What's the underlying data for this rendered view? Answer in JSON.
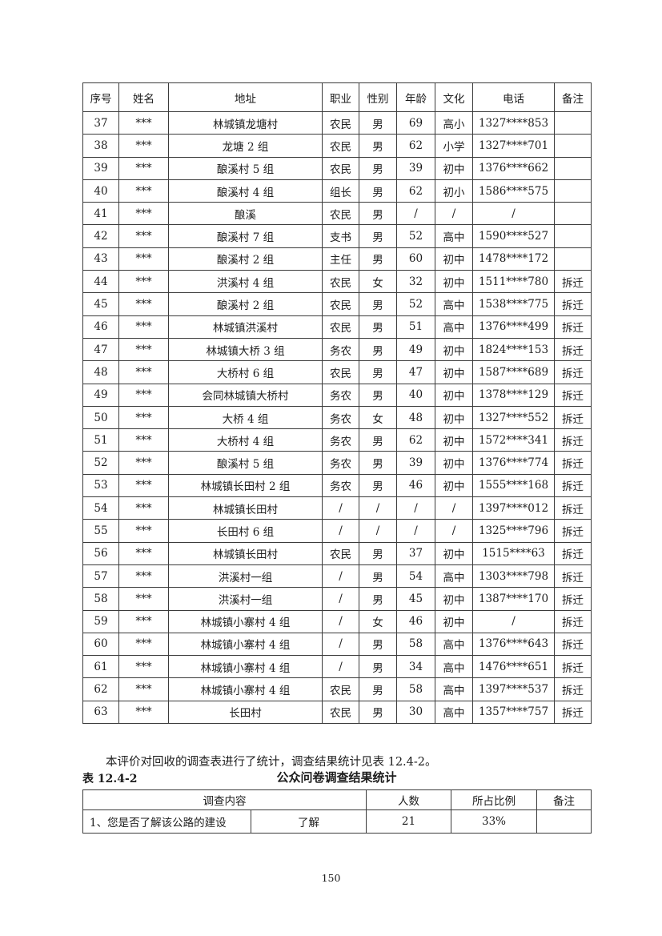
{
  "survey_table": {
    "headers": [
      "序号",
      "姓名",
      "地址",
      "职业",
      "性别",
      "年龄",
      "文化",
      "电话",
      "备注"
    ],
    "rows": [
      [
        "37",
        "***",
        "林城镇龙塘村",
        "农民",
        "男",
        "69",
        "高小",
        "1327****853",
        ""
      ],
      [
        "38",
        "***",
        "龙塘 2 组",
        "农民",
        "男",
        "62",
        "小学",
        "1327****701",
        ""
      ],
      [
        "39",
        "***",
        "酿溪村 5 组",
        "农民",
        "男",
        "39",
        "初中",
        "1376****662",
        ""
      ],
      [
        "40",
        "***",
        "酿溪村 4 组",
        "组长",
        "男",
        "62",
        "初小",
        "1586****575",
        ""
      ],
      [
        "41",
        "***",
        "酿溪",
        "农民",
        "男",
        "/",
        "/",
        "/",
        ""
      ],
      [
        "42",
        "***",
        "酿溪村 7 组",
        "支书",
        "男",
        "52",
        "高中",
        "1590****527",
        ""
      ],
      [
        "43",
        "***",
        "酿溪村 2 组",
        "主任",
        "男",
        "60",
        "初中",
        "1478****172",
        ""
      ],
      [
        "44",
        "***",
        "洪溪村 4 组",
        "农民",
        "女",
        "32",
        "初中",
        "1511****780",
        "拆迁"
      ],
      [
        "45",
        "***",
        "酿溪村 2 组",
        "农民",
        "男",
        "52",
        "高中",
        "1538****775",
        "拆迁"
      ],
      [
        "46",
        "***",
        "林城镇洪溪村",
        "农民",
        "男",
        "51",
        "高中",
        "1376****499",
        "拆迁"
      ],
      [
        "47",
        "***",
        "林城镇大桥 3 组",
        "务农",
        "男",
        "49",
        "初中",
        "1824****153",
        "拆迁"
      ],
      [
        "48",
        "***",
        "大桥村 6 组",
        "农民",
        "男",
        "47",
        "初中",
        "1587****689",
        "拆迁"
      ],
      [
        "49",
        "***",
        "会同林城镇大桥村",
        "务农",
        "男",
        "40",
        "初中",
        "1378****129",
        "拆迁"
      ],
      [
        "50",
        "***",
        "大桥 4 组",
        "务农",
        "女",
        "48",
        "初中",
        "1327****552",
        "拆迁"
      ],
      [
        "51",
        "***",
        "大桥村 4 组",
        "务农",
        "男",
        "62",
        "初中",
        "1572****341",
        "拆迁"
      ],
      [
        "52",
        "***",
        "酿溪村 5 组",
        "务农",
        "男",
        "39",
        "初中",
        "1376****774",
        "拆迁"
      ],
      [
        "53",
        "***",
        "林城镇长田村 2 组",
        "务农",
        "男",
        "46",
        "初中",
        "1555****168",
        "拆迁"
      ],
      [
        "54",
        "***",
        "林城镇长田村",
        "/",
        "/",
        "/",
        "/",
        "1397****012",
        "拆迁"
      ],
      [
        "55",
        "***",
        "长田村 6 组",
        "/",
        "/",
        "/",
        "/",
        "1325****796",
        "拆迁"
      ],
      [
        "56",
        "***",
        "林城镇长田村",
        "农民",
        "男",
        "37",
        "初中",
        "1515****63",
        "拆迁"
      ],
      [
        "57",
        "***",
        "洪溪村一组",
        "/",
        "男",
        "54",
        "高中",
        "1303****798",
        "拆迁"
      ],
      [
        "58",
        "***",
        "洪溪村一组",
        "/",
        "男",
        "45",
        "初中",
        "1387****170",
        "拆迁"
      ],
      [
        "59",
        "***",
        "林城镇小寨村 4 组",
        "/",
        "女",
        "46",
        "初中",
        "/",
        "拆迁"
      ],
      [
        "60",
        "***",
        "林城镇小寨村 4 组",
        "/",
        "男",
        "58",
        "高中",
        "1376****643",
        "拆迁"
      ],
      [
        "61",
        "***",
        "林城镇小寨村 4 组",
        "/",
        "男",
        "34",
        "高中",
        "1476****651",
        "拆迁"
      ],
      [
        "62",
        "***",
        "林城镇小寨村 4 组",
        "农民",
        "男",
        "58",
        "高中",
        "1397****537",
        "拆迁"
      ],
      [
        "63",
        "***",
        "长田村",
        "农民",
        "男",
        "30",
        "高中",
        "1357****757",
        "拆迁"
      ]
    ]
  },
  "paragraph": "本评价对回收的调查表进行了统计，调查结果统计见表 12.4-2。",
  "results_table": {
    "label": "表 12.4-2",
    "title": "公众问卷调查结果统计",
    "headers": [
      "调查内容",
      "人数",
      "所占比例",
      "备注"
    ],
    "rows": [
      [
        "1、您是否了解该公路的建设",
        "了解",
        "21",
        "33%",
        ""
      ]
    ]
  },
  "page": {
    "number": "150"
  }
}
